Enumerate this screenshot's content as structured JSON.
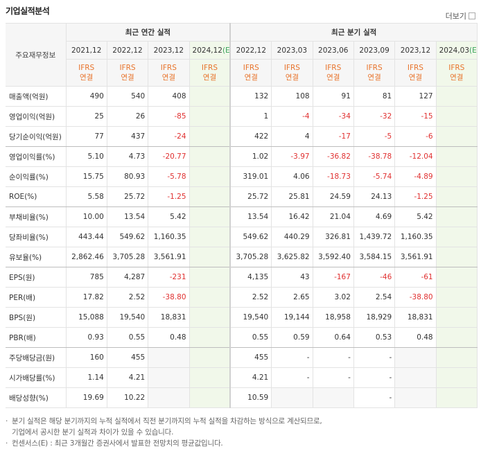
{
  "header": {
    "title": "기업실적분석",
    "more": "더보기"
  },
  "table": {
    "label_head": "주요재무정보",
    "groups": [
      "최근 연간 실적",
      "최근 분기 실적"
    ],
    "columns": [
      {
        "period": "2021,12",
        "standard": "IFRS",
        "scope": "연결"
      },
      {
        "period": "2022,12",
        "standard": "IFRS",
        "scope": "연결"
      },
      {
        "period": "2023,12",
        "standard": "IFRS",
        "scope": "연결"
      },
      {
        "period": "2024,12",
        "estimate": "(E)",
        "standard": "IFRS",
        "scope": "연결"
      },
      {
        "period": "2022,12",
        "standard": "IFRS",
        "scope": "연결"
      },
      {
        "period": "2023,03",
        "standard": "IFRS",
        "scope": "연결"
      },
      {
        "period": "2023,06",
        "standard": "IFRS",
        "scope": "연결"
      },
      {
        "period": "2023,09",
        "standard": "IFRS",
        "scope": "연결"
      },
      {
        "period": "2023,12",
        "standard": "IFRS",
        "scope": "연결"
      },
      {
        "period": "2024,03",
        "estimate": "(E)",
        "standard": "IFRS",
        "scope": "연결"
      }
    ],
    "rows": [
      {
        "label": "매출액(억원)",
        "values": [
          "490",
          "540",
          "408",
          null,
          "132",
          "108",
          "91",
          "81",
          "127",
          null
        ]
      },
      {
        "label": "영업이익(억원)",
        "values": [
          "25",
          "26",
          "-85",
          null,
          "1",
          "-4",
          "-34",
          "-32",
          "-15",
          null
        ]
      },
      {
        "label": "당기순이익(억원)",
        "values": [
          "77",
          "437",
          "-24",
          null,
          "422",
          "4",
          "-17",
          "-5",
          "-6",
          null
        ]
      },
      {
        "label": "영업이익률(%)",
        "values": [
          "5.10",
          "4.73",
          "-20.77",
          null,
          "1.02",
          "-3.97",
          "-36.82",
          "-38.78",
          "-12.04",
          null
        ]
      },
      {
        "label": "순이익률(%)",
        "values": [
          "15.75",
          "80.93",
          "-5.78",
          null,
          "319.01",
          "4.06",
          "-18.73",
          "-5.74",
          "-4.89",
          null
        ]
      },
      {
        "label": "ROE(%)",
        "values": [
          "5.58",
          "25.72",
          "-1.25",
          null,
          "25.72",
          "25.81",
          "24.59",
          "24.13",
          "-1.25",
          null
        ]
      },
      {
        "label": "부채비율(%)",
        "values": [
          "10.00",
          "13.54",
          "5.42",
          null,
          "13.54",
          "16.42",
          "21.04",
          "4.69",
          "5.42",
          null
        ]
      },
      {
        "label": "당좌비율(%)",
        "values": [
          "443.44",
          "549.62",
          "1,160.35",
          null,
          "549.62",
          "440.29",
          "326.81",
          "1,439.72",
          "1,160.35",
          null
        ]
      },
      {
        "label": "유보율(%)",
        "values": [
          "2,862.46",
          "3,705.28",
          "3,561.91",
          null,
          "3,705.28",
          "3,625.82",
          "3,592.40",
          "3,584.15",
          "3,561.91",
          null
        ]
      },
      {
        "label": "EPS(원)",
        "values": [
          "785",
          "4,287",
          "-231",
          null,
          "4,135",
          "43",
          "-167",
          "-46",
          "-61",
          null
        ]
      },
      {
        "label": "PER(배)",
        "values": [
          "17.82",
          "2.52",
          "-38.80",
          null,
          "2.52",
          "2.65",
          "3.02",
          "2.54",
          "-38.80",
          null
        ]
      },
      {
        "label": "BPS(원)",
        "values": [
          "15,088",
          "19,540",
          "18,831",
          null,
          "19,540",
          "19,144",
          "18,958",
          "18,929",
          "18,831",
          null
        ]
      },
      {
        "label": "PBR(배)",
        "values": [
          "0.93",
          "0.55",
          "0.48",
          null,
          "0.55",
          "0.59",
          "0.64",
          "0.53",
          "0.48",
          null
        ]
      },
      {
        "label": "주당배당금(원)",
        "values": [
          "160",
          "455",
          null,
          null,
          "455",
          "-",
          "-",
          "-",
          null,
          null
        ]
      },
      {
        "label": "시가배당률(%)",
        "values": [
          "1.14",
          "4.21",
          null,
          null,
          "4.21",
          "-",
          "-",
          "-",
          null,
          null
        ]
      },
      {
        "label": "배당성향(%)",
        "values": [
          "19.69",
          "10.22",
          null,
          null,
          "10.59",
          null,
          null,
          "-",
          null,
          null
        ]
      }
    ]
  },
  "notes": [
    "분기 실적은 해당 분기까지의 누적 실적에서 직전 분기까지의 누적 실적을 차감하는 방식으로 계산되므로,",
    "기업에서 공시한 분기 실적과 차이가 있을 수 있습니다.",
    "컨센서스(E) : 최근 3개월간 증권사에서 발표한 전망치의 평균값입니다."
  ]
}
